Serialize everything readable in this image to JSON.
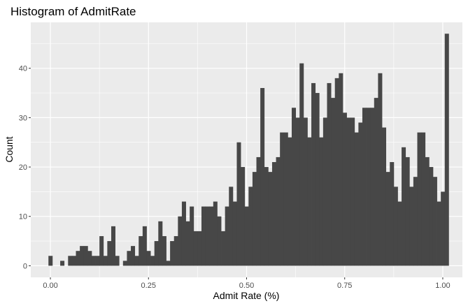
{
  "chart_data": {
    "type": "bar",
    "title": "Histogram of AdmitRate",
    "xlabel": "Admit Rate (%)",
    "ylabel": "Count",
    "x_ticks": [
      0,
      0.25,
      0.5,
      0.75,
      1.0
    ],
    "x_tick_labels": [
      "0.00",
      "0.25",
      "0.50",
      "0.75",
      "1.00"
    ],
    "y_ticks": [
      0,
      10,
      20,
      30,
      40
    ],
    "y_tick_labels": [
      "0",
      "10",
      "20",
      "30",
      "40"
    ],
    "xlim": [
      -0.05,
      1.05
    ],
    "ylim": [
      -2.35,
      49.3
    ],
    "grid": true,
    "bin_width": 0.01,
    "bin_start": -0.005,
    "bar_color": "#474747",
    "panel_color": "#ebebeb",
    "values": [
      2,
      0,
      0,
      1,
      0,
      2,
      2,
      3,
      4,
      4,
      3,
      2,
      2,
      6,
      2,
      5,
      8,
      2,
      0,
      1,
      3,
      4,
      2,
      6,
      8,
      3,
      2,
      5,
      9,
      6,
      1,
      5,
      6,
      10,
      13,
      9,
      12,
      7,
      7,
      12,
      12,
      12,
      13,
      10,
      7,
      12,
      16,
      13,
      25,
      20,
      12,
      16,
      19,
      22,
      36,
      20,
      19,
      21,
      22,
      27,
      27,
      26,
      32,
      30,
      41,
      30,
      26,
      37,
      35,
      26,
      30,
      37,
      34,
      38,
      39,
      31,
      30,
      30,
      27,
      29,
      32,
      32,
      32,
      34,
      39,
      28,
      19,
      21,
      16,
      13,
      24,
      22,
      16,
      18,
      27,
      27,
      22,
      20,
      18,
      13,
      15,
      47
    ]
  }
}
